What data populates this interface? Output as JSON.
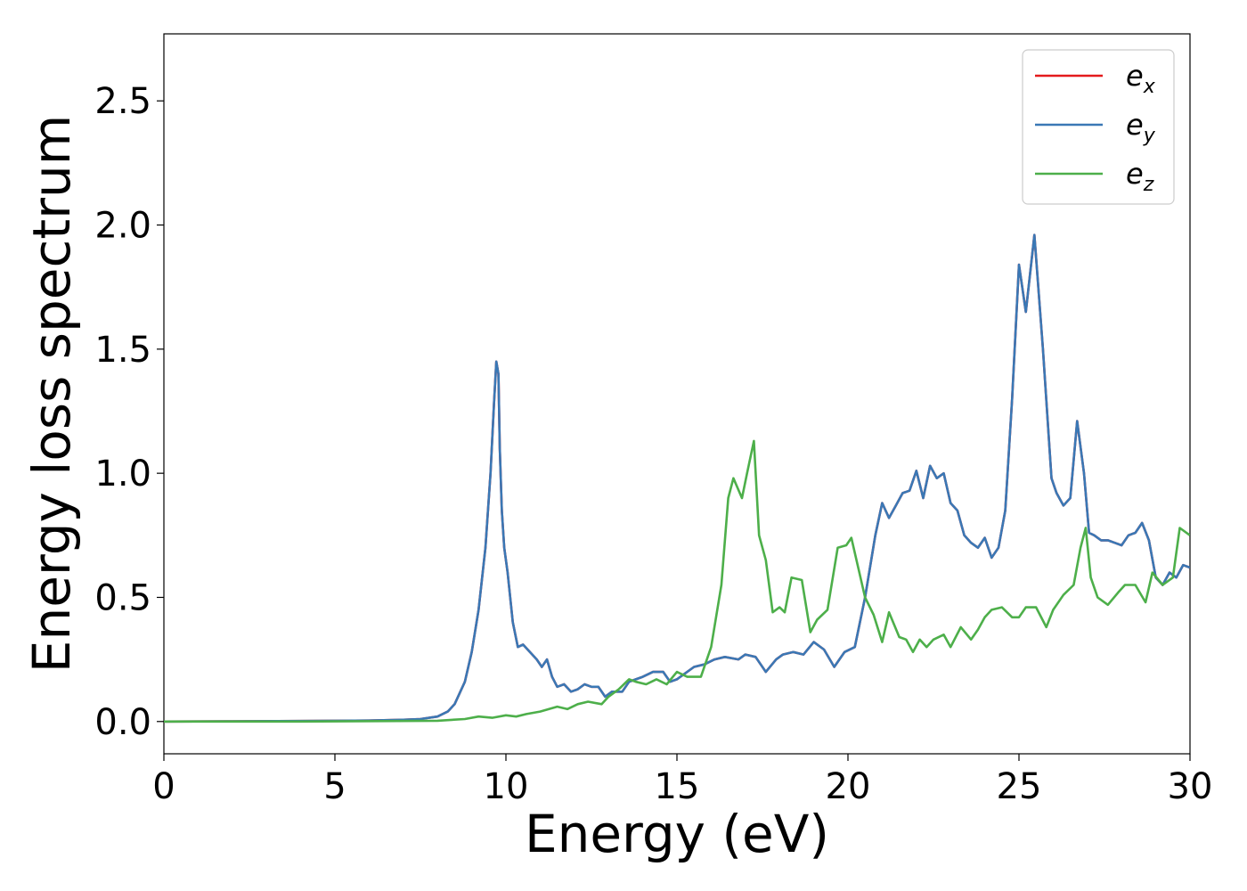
{
  "chart_data": {
    "type": "line",
    "xlabel": "Energy (eV)",
    "ylabel": "Energy loss spectrum",
    "xlim": [
      0,
      30
    ],
    "ylim": [
      -0.13,
      2.77
    ],
    "xticks": [
      "0",
      "5",
      "10",
      "15",
      "20",
      "25",
      "30"
    ],
    "yticks": [
      "0.0",
      "0.5",
      "1.0",
      "1.5",
      "2.0",
      "2.5"
    ],
    "xtick_values": [
      0,
      5,
      10,
      15,
      20,
      25,
      30
    ],
    "ytick_values": [
      0.0,
      0.5,
      1.0,
      1.5,
      2.0,
      2.5
    ],
    "grid": false,
    "legend_position": "top-right",
    "series": [
      {
        "name": "e",
        "subscript": "x",
        "color": "#e41a1c",
        "x": [
          0,
          2,
          4,
          6,
          7,
          7.5,
          8,
          8.3,
          8.5,
          8.8,
          9.0,
          9.2,
          9.4,
          9.55,
          9.65,
          9.72,
          9.78,
          9.82,
          9.88,
          9.95,
          10.05,
          10.2,
          10.35,
          10.5,
          10.7,
          10.9,
          11.05,
          11.2,
          11.35,
          11.5,
          11.7,
          11.9,
          12.1,
          12.3,
          12.5,
          12.7,
          12.9,
          13.1,
          13.4,
          13.6,
          13.8,
          14.0,
          14.3,
          14.6,
          14.8,
          15.0,
          15.2,
          15.5,
          15.8,
          16.1,
          16.4,
          16.8,
          17.0,
          17.3,
          17.6,
          17.9,
          18.1,
          18.4,
          18.7,
          19.0,
          19.3,
          19.6,
          19.9,
          20.2,
          20.5,
          20.8,
          21.0,
          21.2,
          21.4,
          21.6,
          21.8,
          22.0,
          22.2,
          22.4,
          22.6,
          22.8,
          23.0,
          23.2,
          23.4,
          23.6,
          23.8,
          24.0,
          24.2,
          24.4,
          24.6,
          24.8,
          25.0,
          25.2,
          25.45,
          25.7,
          25.95,
          26.1,
          26.3,
          26.5,
          26.7,
          26.9,
          27.05,
          27.2,
          27.4,
          27.6,
          27.8,
          28.0,
          28.2,
          28.4,
          28.6,
          28.8,
          29.0,
          29.2,
          29.4,
          29.6,
          29.8,
          30.0
        ],
        "values": [
          0,
          0.001,
          0.002,
          0.004,
          0.007,
          0.01,
          0.02,
          0.04,
          0.07,
          0.16,
          0.28,
          0.45,
          0.7,
          1.0,
          1.28,
          1.45,
          1.4,
          1.1,
          0.85,
          0.7,
          0.6,
          0.4,
          0.3,
          0.31,
          0.28,
          0.25,
          0.22,
          0.25,
          0.18,
          0.14,
          0.15,
          0.12,
          0.13,
          0.15,
          0.14,
          0.14,
          0.1,
          0.12,
          0.12,
          0.16,
          0.17,
          0.18,
          0.2,
          0.2,
          0.16,
          0.17,
          0.19,
          0.22,
          0.23,
          0.25,
          0.26,
          0.25,
          0.27,
          0.26,
          0.2,
          0.25,
          0.27,
          0.28,
          0.27,
          0.32,
          0.29,
          0.22,
          0.28,
          0.3,
          0.5,
          0.75,
          0.88,
          0.82,
          0.87,
          0.92,
          0.93,
          1.01,
          0.9,
          1.03,
          0.98,
          1.0,
          0.88,
          0.85,
          0.75,
          0.72,
          0.7,
          0.74,
          0.66,
          0.7,
          0.85,
          1.3,
          1.84,
          1.65,
          1.96,
          1.5,
          0.98,
          0.92,
          0.87,
          0.9,
          1.21,
          1.0,
          0.76,
          0.75,
          0.73,
          0.73,
          0.72,
          0.71,
          0.75,
          0.76,
          0.8,
          0.73,
          0.58,
          0.55,
          0.6,
          0.58,
          0.63,
          0.62
        ]
      },
      {
        "name": "e",
        "subscript": "y",
        "color": "#3a78b5",
        "x": [
          0,
          2,
          4,
          6,
          7,
          7.5,
          8,
          8.3,
          8.5,
          8.8,
          9.0,
          9.2,
          9.4,
          9.55,
          9.65,
          9.72,
          9.78,
          9.82,
          9.88,
          9.95,
          10.05,
          10.2,
          10.35,
          10.5,
          10.7,
          10.9,
          11.05,
          11.2,
          11.35,
          11.5,
          11.7,
          11.9,
          12.1,
          12.3,
          12.5,
          12.7,
          12.9,
          13.1,
          13.4,
          13.6,
          13.8,
          14.0,
          14.3,
          14.6,
          14.8,
          15.0,
          15.2,
          15.5,
          15.8,
          16.1,
          16.4,
          16.8,
          17.0,
          17.3,
          17.6,
          17.9,
          18.1,
          18.4,
          18.7,
          19.0,
          19.3,
          19.6,
          19.9,
          20.2,
          20.5,
          20.8,
          21.0,
          21.2,
          21.4,
          21.6,
          21.8,
          22.0,
          22.2,
          22.4,
          22.6,
          22.8,
          23.0,
          23.2,
          23.4,
          23.6,
          23.8,
          24.0,
          24.2,
          24.4,
          24.6,
          24.8,
          25.0,
          25.2,
          25.45,
          25.7,
          25.95,
          26.1,
          26.3,
          26.5,
          26.7,
          26.9,
          27.05,
          27.2,
          27.4,
          27.6,
          27.8,
          28.0,
          28.2,
          28.4,
          28.6,
          28.8,
          29.0,
          29.2,
          29.4,
          29.6,
          29.8,
          30.0
        ],
        "values": [
          0,
          0.001,
          0.002,
          0.004,
          0.007,
          0.01,
          0.02,
          0.04,
          0.07,
          0.16,
          0.28,
          0.45,
          0.7,
          1.0,
          1.28,
          1.45,
          1.4,
          1.1,
          0.85,
          0.7,
          0.6,
          0.4,
          0.3,
          0.31,
          0.28,
          0.25,
          0.22,
          0.25,
          0.18,
          0.14,
          0.15,
          0.12,
          0.13,
          0.15,
          0.14,
          0.14,
          0.1,
          0.12,
          0.12,
          0.16,
          0.17,
          0.18,
          0.2,
          0.2,
          0.16,
          0.17,
          0.19,
          0.22,
          0.23,
          0.25,
          0.26,
          0.25,
          0.27,
          0.26,
          0.2,
          0.25,
          0.27,
          0.28,
          0.27,
          0.32,
          0.29,
          0.22,
          0.28,
          0.3,
          0.5,
          0.75,
          0.88,
          0.82,
          0.87,
          0.92,
          0.93,
          1.01,
          0.9,
          1.03,
          0.98,
          1.0,
          0.88,
          0.85,
          0.75,
          0.72,
          0.7,
          0.74,
          0.66,
          0.7,
          0.85,
          1.3,
          1.84,
          1.65,
          1.96,
          1.5,
          0.98,
          0.92,
          0.87,
          0.9,
          1.21,
          1.0,
          0.76,
          0.75,
          0.73,
          0.73,
          0.72,
          0.71,
          0.75,
          0.76,
          0.8,
          0.73,
          0.58,
          0.55,
          0.6,
          0.58,
          0.63,
          0.62
        ]
      },
      {
        "name": "e",
        "subscript": "z",
        "color": "#4daf4a",
        "x": [
          0,
          4,
          8,
          8.8,
          9.2,
          9.6,
          10.0,
          10.3,
          10.6,
          11.0,
          11.5,
          11.8,
          12.1,
          12.4,
          12.8,
          13.0,
          13.3,
          13.6,
          13.8,
          14.1,
          14.4,
          14.7,
          15.0,
          15.3,
          15.7,
          16.0,
          16.3,
          16.5,
          16.65,
          16.9,
          17.05,
          17.25,
          17.4,
          17.6,
          17.8,
          18.0,
          18.15,
          18.35,
          18.65,
          18.9,
          19.1,
          19.4,
          19.7,
          19.95,
          20.1,
          20.3,
          20.5,
          20.75,
          21.0,
          21.2,
          21.5,
          21.7,
          21.9,
          22.1,
          22.3,
          22.5,
          22.8,
          23.0,
          23.3,
          23.6,
          23.8,
          24.0,
          24.2,
          24.5,
          24.8,
          25.0,
          25.2,
          25.5,
          25.8,
          26.0,
          26.3,
          26.6,
          26.8,
          26.95,
          27.1,
          27.3,
          27.6,
          27.9,
          28.1,
          28.4,
          28.7,
          28.9,
          29.2,
          29.5,
          29.7,
          30.0
        ],
        "values": [
          0,
          0.0,
          0.003,
          0.01,
          0.02,
          0.015,
          0.025,
          0.02,
          0.03,
          0.04,
          0.06,
          0.05,
          0.07,
          0.08,
          0.07,
          0.1,
          0.13,
          0.17,
          0.16,
          0.15,
          0.17,
          0.15,
          0.2,
          0.18,
          0.18,
          0.3,
          0.55,
          0.9,
          0.98,
          0.9,
          1.0,
          1.13,
          0.75,
          0.65,
          0.44,
          0.46,
          0.44,
          0.58,
          0.57,
          0.36,
          0.41,
          0.45,
          0.7,
          0.71,
          0.74,
          0.62,
          0.5,
          0.43,
          0.32,
          0.44,
          0.34,
          0.33,
          0.28,
          0.33,
          0.3,
          0.33,
          0.35,
          0.3,
          0.38,
          0.33,
          0.37,
          0.42,
          0.45,
          0.46,
          0.42,
          0.42,
          0.46,
          0.46,
          0.38,
          0.45,
          0.51,
          0.55,
          0.7,
          0.78,
          0.58,
          0.5,
          0.47,
          0.52,
          0.55,
          0.55,
          0.48,
          0.6,
          0.55,
          0.58,
          0.78,
          0.75
        ]
      }
    ]
  }
}
